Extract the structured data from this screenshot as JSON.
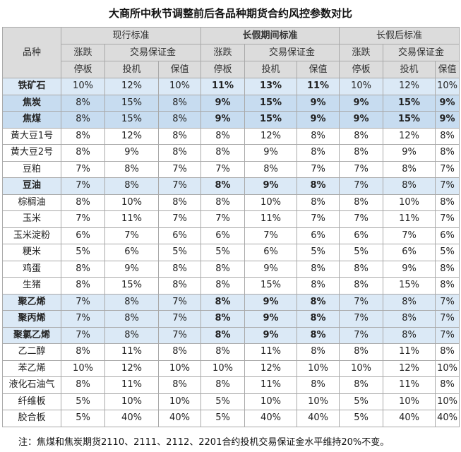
{
  "title": "大商所中秋节调整前后各品种期货合约风控参数对比",
  "header": {
    "variety": "品种",
    "groups": [
      "现行标准",
      "长假期间标准",
      "长假后标准"
    ],
    "limit_label_1": "涨跌",
    "limit_label_2": "停板",
    "margin_label": "交易保证金",
    "spec_label": "投机",
    "hedge_label": "保值"
  },
  "rows": [
    {
      "name": "铁矿石",
      "style": "hl",
      "vals": [
        "10%",
        "12%",
        "10%",
        "11%",
        "13%",
        "11%",
        "10%",
        "12%",
        "10%"
      ]
    },
    {
      "name": "焦炭",
      "style": "hl2",
      "vals": [
        "8%",
        "15%",
        "8%",
        "9%",
        "15%",
        "9%",
        "9%",
        "15%",
        "9%"
      ]
    },
    {
      "name": "焦煤",
      "style": "hl2",
      "vals": [
        "8%",
        "15%",
        "8%",
        "9%",
        "15%",
        "9%",
        "9%",
        "15%",
        "9%"
      ]
    },
    {
      "name": "黄大豆1号",
      "style": "",
      "vals": [
        "8%",
        "12%",
        "8%",
        "8%",
        "12%",
        "8%",
        "8%",
        "12%",
        "8%"
      ]
    },
    {
      "name": "黄大豆2号",
      "style": "",
      "vals": [
        "8%",
        "9%",
        "8%",
        "8%",
        "9%",
        "8%",
        "8%",
        "9%",
        "8%"
      ]
    },
    {
      "name": "豆粕",
      "style": "",
      "vals": [
        "7%",
        "8%",
        "7%",
        "7%",
        "8%",
        "7%",
        "7%",
        "8%",
        "7%"
      ]
    },
    {
      "name": "豆油",
      "style": "hl",
      "vals": [
        "7%",
        "8%",
        "7%",
        "8%",
        "9%",
        "8%",
        "7%",
        "8%",
        "7%"
      ]
    },
    {
      "name": "棕榈油",
      "style": "",
      "vals": [
        "8%",
        "10%",
        "8%",
        "8%",
        "10%",
        "8%",
        "8%",
        "10%",
        "8%"
      ]
    },
    {
      "name": "玉米",
      "style": "",
      "vals": [
        "7%",
        "11%",
        "7%",
        "7%",
        "11%",
        "7%",
        "7%",
        "11%",
        "7%"
      ]
    },
    {
      "name": "玉米淀粉",
      "style": "",
      "vals": [
        "6%",
        "7%",
        "6%",
        "6%",
        "7%",
        "6%",
        "6%",
        "7%",
        "6%"
      ]
    },
    {
      "name": "粳米",
      "style": "",
      "vals": [
        "5%",
        "6%",
        "5%",
        "5%",
        "6%",
        "5%",
        "5%",
        "6%",
        "5%"
      ]
    },
    {
      "name": "鸡蛋",
      "style": "",
      "vals": [
        "8%",
        "9%",
        "8%",
        "8%",
        "9%",
        "8%",
        "8%",
        "9%",
        "8%"
      ]
    },
    {
      "name": "生猪",
      "style": "",
      "vals": [
        "8%",
        "15%",
        "8%",
        "8%",
        "15%",
        "8%",
        "8%",
        "15%",
        "8%"
      ]
    },
    {
      "name": "聚乙烯",
      "style": "hl",
      "vals": [
        "7%",
        "8%",
        "7%",
        "8%",
        "9%",
        "8%",
        "7%",
        "8%",
        "7%"
      ]
    },
    {
      "name": "聚丙烯",
      "style": "hl",
      "vals": [
        "7%",
        "8%",
        "7%",
        "8%",
        "9%",
        "8%",
        "7%",
        "8%",
        "7%"
      ]
    },
    {
      "name": "聚氯乙烯",
      "style": "hl",
      "vals": [
        "7%",
        "8%",
        "7%",
        "8%",
        "9%",
        "8%",
        "7%",
        "8%",
        "7%"
      ]
    },
    {
      "name": "乙二醇",
      "style": "",
      "vals": [
        "8%",
        "11%",
        "8%",
        "8%",
        "11%",
        "8%",
        "8%",
        "11%",
        "8%"
      ]
    },
    {
      "name": "苯乙烯",
      "style": "",
      "vals": [
        "10%",
        "12%",
        "10%",
        "10%",
        "12%",
        "10%",
        "10%",
        "12%",
        "10%"
      ]
    },
    {
      "name": "液化石油气",
      "style": "",
      "vals": [
        "8%",
        "11%",
        "8%",
        "8%",
        "11%",
        "8%",
        "8%",
        "11%",
        "8%"
      ]
    },
    {
      "name": "纤维板",
      "style": "",
      "vals": [
        "5%",
        "10%",
        "10%",
        "5%",
        "10%",
        "10%",
        "5%",
        "10%",
        "10%"
      ]
    },
    {
      "name": "胶合板",
      "style": "",
      "vals": [
        "5%",
        "40%",
        "40%",
        "5%",
        "40%",
        "40%",
        "5%",
        "40%",
        "40%"
      ]
    }
  ],
  "note": "注：焦煤和焦炭期货2110、2111、2112、2201合约投机交易保证金水平维持20%不变。"
}
